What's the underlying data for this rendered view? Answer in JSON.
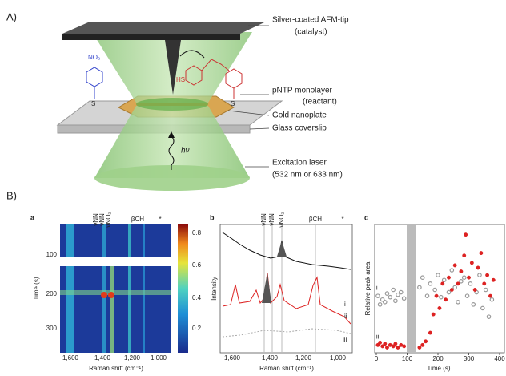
{
  "figure_a": {
    "label": "A)",
    "tip_label": [
      "Silver-coated AFM-tip",
      "(catalyst)"
    ],
    "monolayer_label": [
      "pNTP monolayer",
      "(reactant)"
    ],
    "nanoplate_label": "Gold nanoplate",
    "coverslip_label": "Glass coverslip",
    "laser_label": [
      "Excitation laser",
      "(532 nm or 633 nm)"
    ],
    "photon": "hν",
    "molecule": {
      "nitro": "NO₂",
      "thiol": "HS",
      "sulfur_left": "S",
      "sulfur_right": "S"
    }
  },
  "figure_b": {
    "label": "B)",
    "a": {
      "label": "a",
      "ylabel": "Time (s)",
      "xlabel": "Raman shift (cm⁻¹)",
      "yticks": [
        100,
        200,
        300
      ],
      "xticks": [
        "1,600",
        "1,400",
        "1,200",
        "1,000"
      ],
      "colorbar_ticks": [
        0.8,
        0.6,
        0.4,
        0.2
      ],
      "peak_labels": [
        "νNN",
        "νNN",
        "νNO₂",
        "βCH",
        "*"
      ]
    },
    "b": {
      "label": "b",
      "ylabel": "Intensity",
      "xlabel": "Raman shift (cm⁻¹)",
      "xticks": [
        "1,600",
        "1,400",
        "1,200",
        "1,000"
      ],
      "peak_labels": [
        "νNN",
        "νNN",
        "νNO₂",
        "βCH",
        "*"
      ],
      "trace_labels": [
        "i",
        "ii",
        "iii"
      ]
    },
    "c": {
      "label": "c",
      "ylabel": "Relative peak area",
      "xlabel": "Time (s)",
      "xticks": [
        0,
        100,
        200,
        300,
        400
      ],
      "xlim": [
        0,
        400
      ],
      "ylim": [
        0,
        1
      ],
      "series": [
        {
          "name": "i",
          "color": "#999999",
          "x": [
            5,
            12,
            20,
            28,
            35,
            45,
            55,
            62,
            70,
            80,
            90,
            140,
            150,
            165,
            175,
            190,
            200,
            210,
            220,
            235,
            245,
            255,
            265,
            275,
            285,
            295,
            305,
            315,
            325,
            335,
            345,
            355,
            365,
            375
          ],
          "y": [
            0.45,
            0.38,
            0.42,
            0.4,
            0.47,
            0.44,
            0.5,
            0.41,
            0.46,
            0.48,
            0.43,
            0.52,
            0.6,
            0.45,
            0.55,
            0.5,
            0.62,
            0.44,
            0.58,
            0.48,
            0.66,
            0.52,
            0.4,
            0.57,
            0.6,
            0.45,
            0.55,
            0.38,
            0.48,
            0.62,
            0.35,
            0.5,
            0.28,
            0.42
          ]
        },
        {
          "name": "ii",
          "color": "#dd2222",
          "x": [
            5,
            12,
            20,
            28,
            35,
            45,
            55,
            62,
            70,
            80,
            90,
            140,
            150,
            160,
            175,
            185,
            195,
            205,
            215,
            225,
            235,
            245,
            255,
            265,
            275,
            285,
            290,
            300,
            310,
            320,
            330,
            340,
            350,
            360,
            370,
            380
          ],
          "y": [
            0.05,
            0.07,
            0.04,
            0.06,
            0.03,
            0.05,
            0.04,
            0.06,
            0.03,
            0.05,
            0.04,
            0.03,
            0.05,
            0.08,
            0.15,
            0.3,
            0.45,
            0.35,
            0.55,
            0.42,
            0.6,
            0.5,
            0.7,
            0.55,
            0.65,
            0.78,
            0.95,
            0.6,
            0.72,
            0.5,
            0.68,
            0.8,
            0.55,
            0.62,
            0.45,
            0.58
          ]
        }
      ]
    }
  }
}
